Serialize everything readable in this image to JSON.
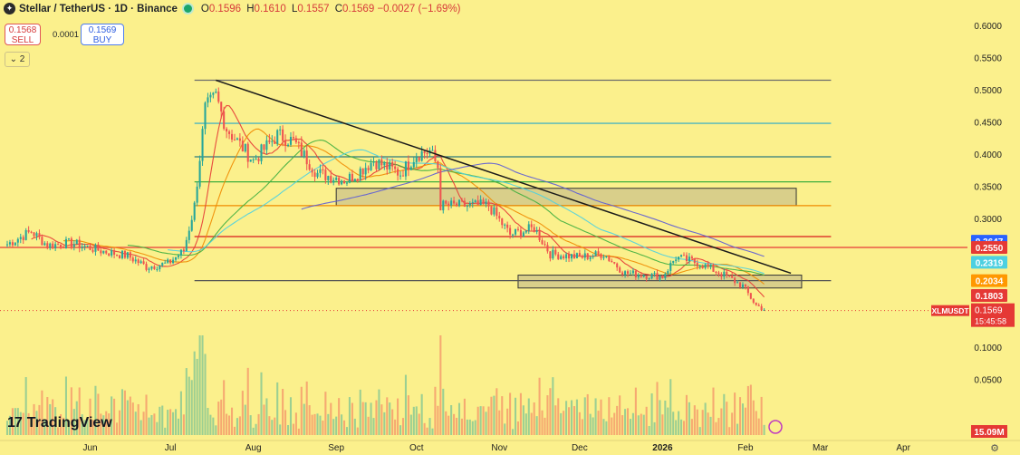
{
  "header": {
    "symbol": "Stellar / TetherUS · 1D · Binance",
    "open_label": "O",
    "open": "0.1596",
    "high_label": "H",
    "high": "0.1610",
    "low_label": "L",
    "low": "0.1557",
    "close_label": "C",
    "close": "0.1569",
    "change": "−0.0027 (−1.69%)"
  },
  "trade": {
    "sell_price": "0.1568",
    "sell_label": "SELL",
    "spread": "0.0001",
    "buy_price": "0.1569",
    "buy_label": "BUY",
    "indicators_toggle": "⌄ 2"
  },
  "branding": {
    "name": "TradingView",
    "mark": "17"
  },
  "colors": {
    "background": "#fbf08c",
    "candle_up": "#26a69a",
    "candle_down": "#ef5350",
    "trendline": "#1a1a1a",
    "zone_fill": "#d9cf8a",
    "zone_border": "#333333"
  },
  "chart_data": {
    "type": "candlestick",
    "x_tick_labels": [
      "Jun",
      "Jul",
      "Aug",
      "Sep",
      "Oct",
      "Nov",
      "Dec",
      "2026",
      "Feb",
      "Mar",
      "Apr"
    ],
    "y_tick_labels": [
      "0.6000",
      "0.5500",
      "0.5000",
      "0.4500",
      "0.4000",
      "0.3500",
      "0.3000",
      "0.1000",
      "0.0500"
    ],
    "y_ticks": [
      0.6,
      0.55,
      0.5,
      0.45,
      0.4,
      0.35,
      0.3,
      0.1,
      0.05
    ],
    "ylim": [
      0.0,
      0.62
    ],
    "price_line_badges": [
      {
        "label": "0.2647",
        "value": 0.2647,
        "color": "#2962ff"
      },
      {
        "label": "0.2550",
        "value": 0.255,
        "color": "#e53935"
      },
      {
        "label": "0.2319",
        "value": 0.2319,
        "color": "#4dd0e1"
      },
      {
        "label": "0.2034",
        "value": 0.2034,
        "color": "#ff9800"
      },
      {
        "label": "0.1803",
        "value": 0.1803,
        "color": "#e53935"
      }
    ],
    "current_price": {
      "symbol": "XLMUSDT",
      "value_label": "0.1569",
      "value": 0.1569,
      "countdown": "15:45:58",
      "color": "#e53935"
    },
    "volume_badge": {
      "label": "15.09M",
      "color": "#e53935"
    },
    "horizontal_levels": [
      {
        "value": 0.515,
        "color": "#6b6b6b"
      },
      {
        "value": 0.448,
        "color": "#2aa9c9"
      },
      {
        "value": 0.396,
        "color": "#2c7a7b"
      },
      {
        "value": 0.357,
        "color": "#3fae3f"
      },
      {
        "value": 0.32,
        "color": "#f08a00"
      },
      {
        "value": 0.272,
        "color": "#d81b1b"
      },
      {
        "value": 0.255,
        "color": "#e53935"
      },
      {
        "value": 0.2034,
        "color": "#555555"
      }
    ],
    "zones": [
      {
        "from": "2025-09-01",
        "to": "2026-02-20",
        "low": 0.32,
        "high": 0.347
      },
      {
        "from": "2025-11-08",
        "to": "2026-02-22",
        "low": 0.192,
        "high": 0.212
      }
    ],
    "trendline": [
      {
        "date": "2025-07-18",
        "value": 0.515
      },
      {
        "date": "2026-02-18",
        "value": 0.215
      }
    ],
    "ohlc_series": {
      "start": "2025-05-01",
      "count": 284,
      "points": [
        [
          "2025-05-01",
          0.26
        ],
        [
          "2025-05-10",
          0.28
        ],
        [
          "2025-05-16",
          0.258
        ],
        [
          "2025-05-25",
          0.262
        ],
        [
          "2025-06-05",
          0.25
        ],
        [
          "2025-06-15",
          0.242
        ],
        [
          "2025-06-22",
          0.225
        ],
        [
          "2025-06-30",
          0.23
        ],
        [
          "2025-07-06",
          0.25
        ],
        [
          "2025-07-10",
          0.32
        ],
        [
          "2025-07-14",
          0.47
        ],
        [
          "2025-07-18",
          0.49
        ],
        [
          "2025-07-22",
          0.44
        ],
        [
          "2025-08-01",
          0.39
        ],
        [
          "2025-08-10",
          0.43
        ],
        [
          "2025-08-16",
          0.42
        ],
        [
          "2025-08-25",
          0.37
        ],
        [
          "2025-09-05",
          0.36
        ],
        [
          "2025-09-15",
          0.39
        ],
        [
          "2025-09-25",
          0.37
        ],
        [
          "2025-10-01",
          0.4
        ],
        [
          "2025-10-06",
          0.405
        ],
        [
          "2025-10-09",
          0.38
        ],
        [
          "2025-10-10",
          0.32
        ],
        [
          "2025-10-20",
          0.32
        ],
        [
          "2025-10-28",
          0.32
        ],
        [
          "2025-11-05",
          0.275
        ],
        [
          "2025-11-14",
          0.285
        ],
        [
          "2025-11-20",
          0.245
        ],
        [
          "2025-12-01",
          0.24
        ],
        [
          "2025-12-10",
          0.245
        ],
        [
          "2025-12-18",
          0.215
        ],
        [
          "2026-01-01",
          0.21
        ],
        [
          "2026-01-06",
          0.24
        ],
        [
          "2026-01-15",
          0.23
        ],
        [
          "2026-01-25",
          0.21
        ],
        [
          "2026-01-31",
          0.195
        ],
        [
          "2026-02-05",
          0.165
        ],
        [
          "2026-02-09",
          0.157
        ]
      ]
    },
    "moving_averages": [
      {
        "color": "#e53935",
        "period": 9
      },
      {
        "color": "#f08a00",
        "period": 21
      },
      {
        "color": "#3fae3f",
        "period": 50
      },
      {
        "color": "#4dd0e1",
        "period": 50
      },
      {
        "color": "#5c5cd6",
        "period": 100
      }
    ]
  }
}
